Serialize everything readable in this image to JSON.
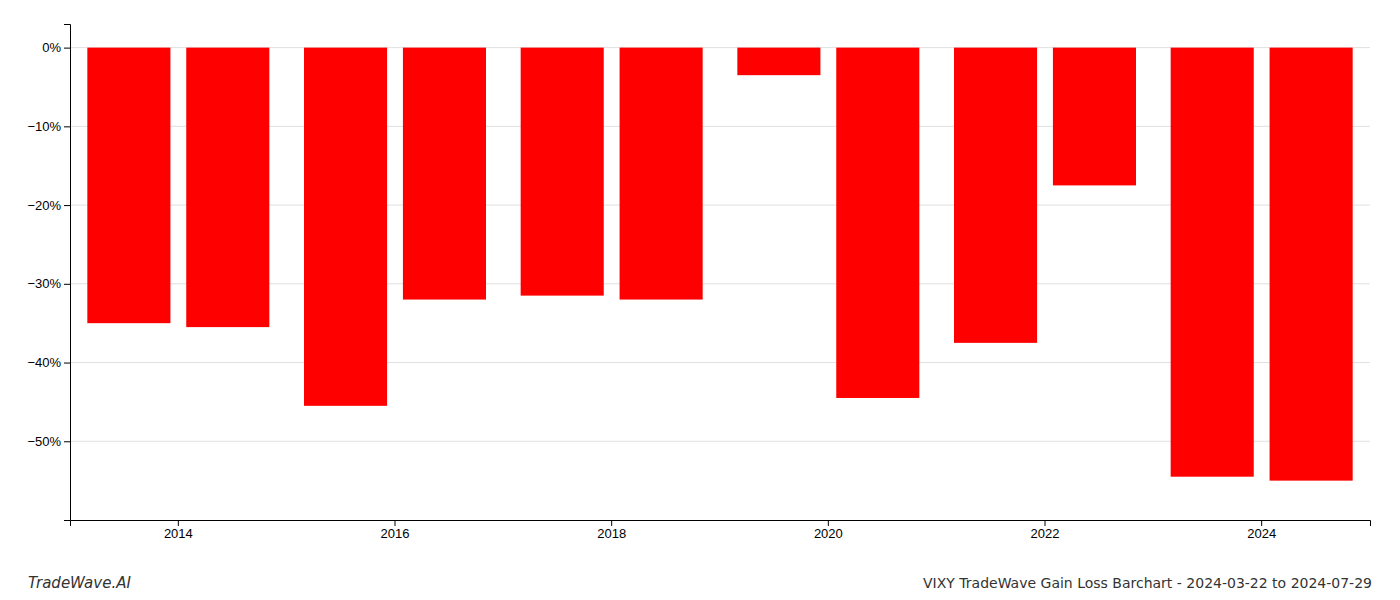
{
  "chart_data": {
    "type": "bar",
    "title": "VIXY TradeWave Gain Loss Barchart - 2024-03-22 to 2024-07-29",
    "annotations": [
      "TradeWave.AI"
    ],
    "categories": [
      "2014",
      "2016",
      "2018",
      "2020",
      "2022",
      "2024"
    ],
    "series": [
      {
        "color": "#ff0000",
        "values": [
          -35.0,
          -45.5,
          -31.5,
          -3.5,
          -37.5,
          -54.5
        ]
      },
      {
        "color": "#ff0000",
        "values": [
          -35.5,
          -32.0,
          -32.0,
          -44.5,
          -17.5,
          -55.0
        ]
      }
    ],
    "ylim": [
      -60,
      3
    ],
    "yticks": [
      {
        "value": 0,
        "label": "0%"
      },
      {
        "value": -10,
        "label": "−10%"
      },
      {
        "value": -20,
        "label": "−20%"
      },
      {
        "value": -30,
        "label": "−30%"
      },
      {
        "value": -40,
        "label": "−40%"
      },
      {
        "value": -50,
        "label": "−50%"
      }
    ],
    "grid": true
  }
}
